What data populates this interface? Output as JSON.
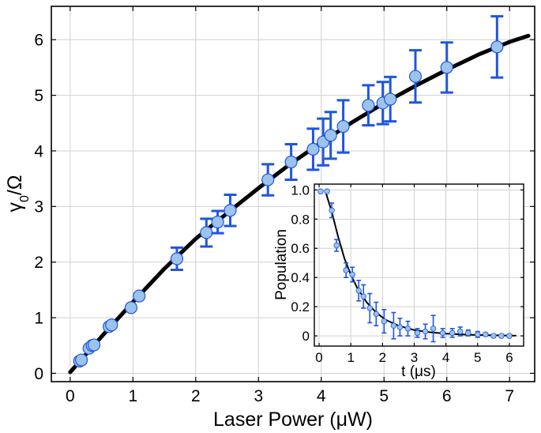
{
  "chart_data": [
    {
      "type": "scatter",
      "xlabel": "Laser Power (μW)",
      "ylabel_base": "γ",
      "ylabel_sub": "0",
      "ylabel_rest": "/Ω",
      "xlim": [
        -0.3,
        7.4
      ],
      "ylim": [
        -0.15,
        6.6
      ],
      "xticks": [
        0,
        1,
        2,
        3,
        4,
        5,
        6,
        7
      ],
      "yticks": [
        0,
        1,
        2,
        3,
        4,
        5,
        6
      ],
      "grid": true,
      "series": [
        {
          "role": "data with error bars",
          "color": "#9cc3ea",
          "error_color": "#1f55e0",
          "points": [
            {
              "x": 0.15,
              "y": 0.22,
              "err": 0
            },
            {
              "x": 0.18,
              "y": 0.24,
              "err": 0
            },
            {
              "x": 0.3,
              "y": 0.45,
              "err": 0
            },
            {
              "x": 0.35,
              "y": 0.5,
              "err": 0
            },
            {
              "x": 0.38,
              "y": 0.51,
              "err": 0
            },
            {
              "x": 0.62,
              "y": 0.84,
              "err": 0
            },
            {
              "x": 0.66,
              "y": 0.87,
              "err": 0
            },
            {
              "x": 0.97,
              "y": 1.18,
              "err": 0
            },
            {
              "x": 1.1,
              "y": 1.39,
              "err": 0
            },
            {
              "x": 1.7,
              "y": 2.06,
              "err": 0.2
            },
            {
              "x": 2.17,
              "y": 2.53,
              "err": 0.25
            },
            {
              "x": 2.35,
              "y": 2.72,
              "err": 0.2
            },
            {
              "x": 2.55,
              "y": 2.93,
              "err": 0.28
            },
            {
              "x": 3.15,
              "y": 3.48,
              "err": 0.28
            },
            {
              "x": 3.52,
              "y": 3.8,
              "err": 0.32
            },
            {
              "x": 3.87,
              "y": 4.03,
              "err": 0.37
            },
            {
              "x": 4.03,
              "y": 4.16,
              "err": 0.42
            },
            {
              "x": 4.15,
              "y": 4.28,
              "err": 0.42
            },
            {
              "x": 4.35,
              "y": 4.44,
              "err": 0.47
            },
            {
              "x": 4.75,
              "y": 4.82,
              "err": 0.36
            },
            {
              "x": 4.98,
              "y": 4.86,
              "err": 0.38
            },
            {
              "x": 5.1,
              "y": 4.93,
              "err": 0.4
            },
            {
              "x": 5.5,
              "y": 5.34,
              "err": 0.47
            },
            {
              "x": 6.0,
              "y": 5.5,
              "err": 0.45
            },
            {
              "x": 6.8,
              "y": 5.87,
              "err": 0.55
            }
          ]
        },
        {
          "role": "fit curve",
          "color": "#000000",
          "x": [
            0,
            0.5,
            1,
            1.5,
            2,
            2.5,
            3,
            3.5,
            4,
            4.5,
            5,
            5.5,
            6,
            6.5,
            7,
            7.3
          ],
          "y": [
            0.02,
            0.66,
            1.28,
            1.88,
            2.42,
            2.88,
            3.33,
            3.76,
            4.15,
            4.52,
            4.86,
            5.17,
            5.46,
            5.73,
            5.96,
            6.07
          ]
        }
      ]
    },
    {
      "type": "scatter",
      "xlabel": "t (μs)",
      "ylabel": "Population",
      "xlim": [
        -0.15,
        6.45
      ],
      "ylim": [
        -0.07,
        1.04
      ],
      "xticks": [
        0,
        1,
        2,
        3,
        4,
        5,
        6
      ],
      "yticks": [
        "0",
        "0.2",
        "0.4",
        "0.6",
        "0.8",
        "1.0"
      ],
      "ytick_values": [
        0,
        0.2,
        0.4,
        0.6,
        0.8,
        1.0
      ],
      "grid": true,
      "series": [
        {
          "role": "data with error bars",
          "color": "#9cc3ea",
          "error_color": "#1f55e0",
          "points": [
            {
              "x": 0.05,
              "y": 0.99,
              "err": 0.01
            },
            {
              "x": 0.25,
              "y": 0.99,
              "err": 0.01
            },
            {
              "x": 0.4,
              "y": 0.86,
              "err": 0.05
            },
            {
              "x": 0.55,
              "y": 0.62,
              "err": 0.04
            },
            {
              "x": 0.85,
              "y": 0.45,
              "err": 0.05
            },
            {
              "x": 1.05,
              "y": 0.42,
              "err": 0.05
            },
            {
              "x": 1.25,
              "y": 0.31,
              "err": 0.07
            },
            {
              "x": 1.4,
              "y": 0.27,
              "err": 0.08
            },
            {
              "x": 1.6,
              "y": 0.19,
              "err": 0.1
            },
            {
              "x": 1.8,
              "y": 0.15,
              "err": 0.08
            },
            {
              "x": 2.05,
              "y": 0.1,
              "err": 0.08
            },
            {
              "x": 2.35,
              "y": 0.07,
              "err": 0.09
            },
            {
              "x": 2.55,
              "y": 0.06,
              "err": 0.06
            },
            {
              "x": 2.8,
              "y": 0.05,
              "err": 0.05
            },
            {
              "x": 3.1,
              "y": 0.02,
              "err": 0.03
            },
            {
              "x": 3.35,
              "y": 0.03,
              "err": 0.05
            },
            {
              "x": 3.6,
              "y": 0.05,
              "err": 0.09
            },
            {
              "x": 3.9,
              "y": 0.02,
              "err": 0.03
            },
            {
              "x": 4.2,
              "y": 0.02,
              "err": 0.03
            },
            {
              "x": 4.45,
              "y": 0.03,
              "err": 0.03
            },
            {
              "x": 4.7,
              "y": 0.02,
              "err": 0.02
            },
            {
              "x": 5.0,
              "y": 0.01,
              "err": 0.02
            },
            {
              "x": 5.25,
              "y": 0.01,
              "err": 0.01
            },
            {
              "x": 5.5,
              "y": 0.0,
              "err": 0.01
            },
            {
              "x": 5.75,
              "y": 0.0,
              "err": 0.01
            },
            {
              "x": 6.0,
              "y": 0.0,
              "err": 0.01
            }
          ]
        },
        {
          "role": "fit curve",
          "color": "#000000",
          "x": [
            0.2,
            0.4,
            0.6,
            0.8,
            1.0,
            1.2,
            1.5,
            1.8,
            2.1,
            2.5,
            3.0,
            3.5,
            4.0,
            4.5,
            5.0,
            5.5,
            6.0,
            6.2
          ],
          "y": [
            0.99,
            0.85,
            0.68,
            0.53,
            0.42,
            0.33,
            0.23,
            0.16,
            0.11,
            0.07,
            0.04,
            0.025,
            0.015,
            0.01,
            0.006,
            0.004,
            0.002,
            0.002
          ]
        }
      ]
    }
  ]
}
